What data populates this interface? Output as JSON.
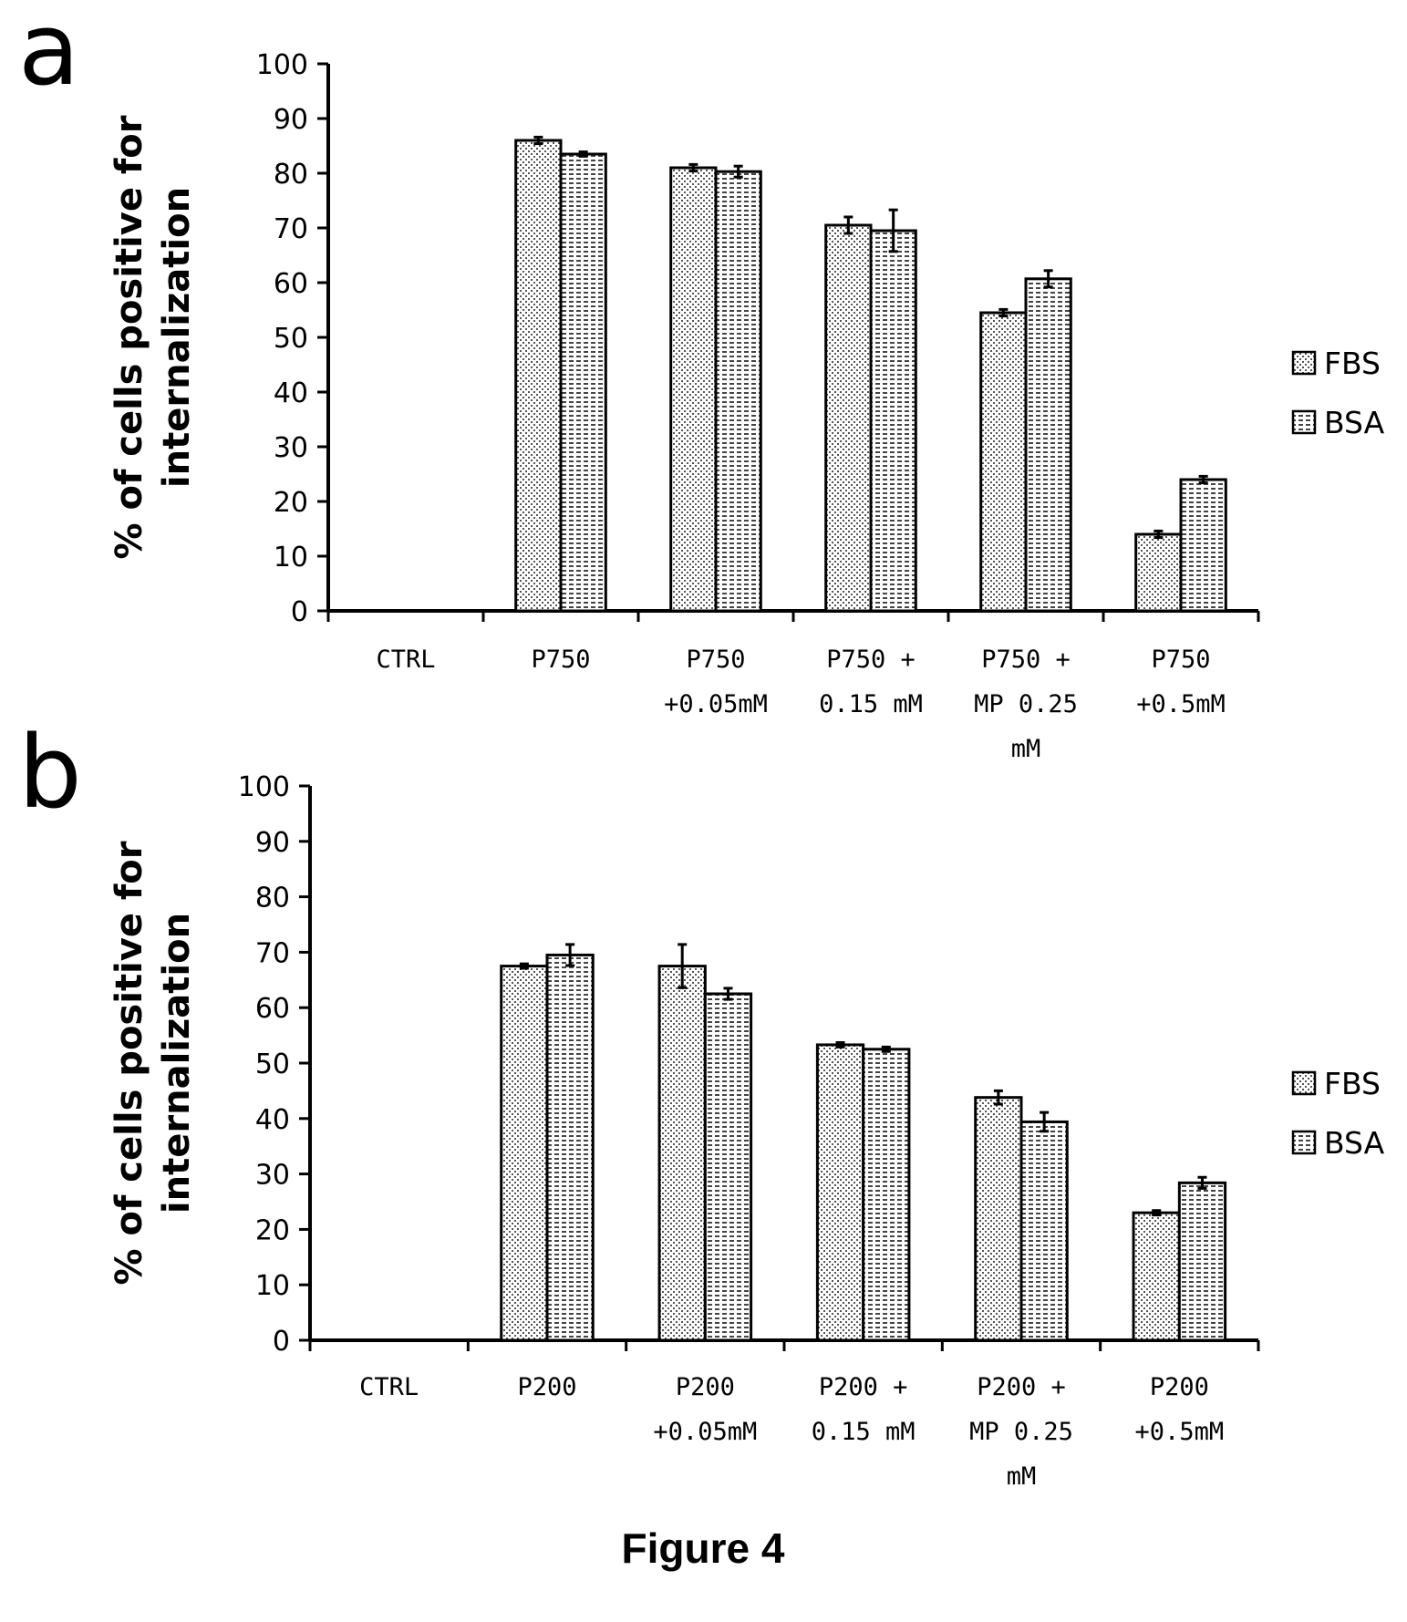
{
  "figure_caption": "Figure 4",
  "chart_data": [
    {
      "panel": "a",
      "type": "bar",
      "ylabel": [
        "% of cells positive for",
        "internalization"
      ],
      "xlabel": "",
      "ylim": [
        0,
        100
      ],
      "yticks": [
        0,
        10,
        20,
        30,
        40,
        50,
        60,
        70,
        80,
        90,
        100
      ],
      "grid": false,
      "legend_position": "right",
      "categories": [
        [
          "CTRL"
        ],
        [
          "P750"
        ],
        [
          "P750",
          "+0.05mM"
        ],
        [
          "P750 +",
          "0.15 mM"
        ],
        [
          "P750 +",
          "MP 0.25",
          "mM"
        ],
        [
          "P750",
          "+0.5mM"
        ]
      ],
      "series": [
        {
          "name": "FBS",
          "pattern": "dotted",
          "values": [
            0,
            86,
            81,
            70.5,
            54.5,
            14
          ],
          "errors": [
            0,
            0.6,
            0.6,
            1.5,
            0.6,
            0.6
          ]
        },
        {
          "name": "BSA",
          "pattern": "dashed",
          "values": [
            0,
            83.5,
            80.3,
            69.5,
            60.7,
            24
          ],
          "errors": [
            0,
            0.4,
            1.0,
            3.8,
            1.5,
            0.6
          ]
        }
      ]
    },
    {
      "panel": "b",
      "type": "bar",
      "ylabel": [
        "% of cells positive for",
        "internalization"
      ],
      "xlabel": "",
      "ylim": [
        0,
        100
      ],
      "yticks": [
        0,
        10,
        20,
        30,
        40,
        50,
        60,
        70,
        80,
        90,
        100
      ],
      "grid": false,
      "legend_position": "right",
      "categories": [
        [
          "CTRL"
        ],
        [
          "P200"
        ],
        [
          "P200",
          "+0.05mM"
        ],
        [
          "P200 +",
          "0.15 mM"
        ],
        [
          "P200 +",
          "MP 0.25",
          "mM"
        ],
        [
          "P200",
          "+0.5mM"
        ]
      ],
      "series": [
        {
          "name": "FBS",
          "pattern": "dotted",
          "values": [
            0,
            67.5,
            67.5,
            53.3,
            43.8,
            23
          ],
          "errors": [
            0,
            0.4,
            3.9,
            0.4,
            1.2,
            0.4
          ]
        },
        {
          "name": "BSA",
          "pattern": "dashed",
          "values": [
            0,
            69.5,
            62.5,
            52.5,
            39.4,
            28.4
          ],
          "errors": [
            0,
            1.9,
            1.0,
            0.4,
            1.7,
            1.0
          ]
        }
      ]
    }
  ]
}
